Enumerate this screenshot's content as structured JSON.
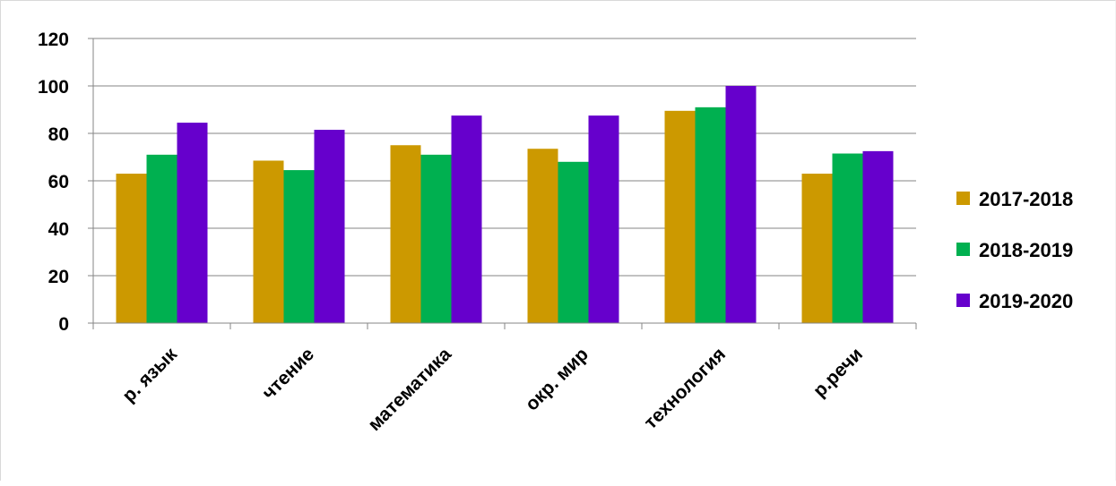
{
  "chart_data": {
    "type": "bar",
    "title": "",
    "xlabel": "",
    "ylabel": "",
    "categories": [
      "р. язык",
      "чтение",
      "математика",
      "окр. мир",
      "технология",
      "р.речи"
    ],
    "series": [
      {
        "name": "2017-2018",
        "color": "#cc9900",
        "values": [
          63,
          68.5,
          75,
          73.5,
          89.5,
          63
        ]
      },
      {
        "name": "2018-2019",
        "color": "#00b050",
        "values": [
          71,
          64.5,
          71,
          68,
          91,
          71.5
        ]
      },
      {
        "name": "2019-2020",
        "color": "#6600cc",
        "values": [
          84.5,
          81.5,
          87.5,
          87.5,
          100,
          72.5
        ]
      }
    ],
    "ylim": [
      0,
      120
    ],
    "yticks": [
      0,
      20,
      40,
      60,
      80,
      100,
      120
    ],
    "grid": true,
    "legend_position": "right"
  }
}
